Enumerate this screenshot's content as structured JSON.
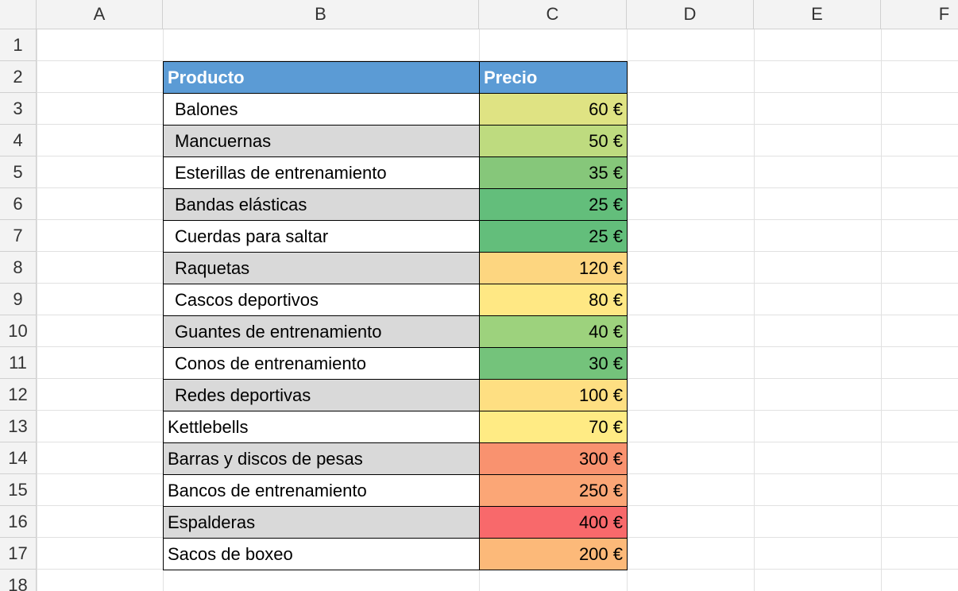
{
  "columns": [
    "A",
    "B",
    "C",
    "D",
    "E",
    "F"
  ],
  "rows": [
    "1",
    "2",
    "3",
    "4",
    "5",
    "6",
    "7",
    "8",
    "9",
    "10",
    "11",
    "12",
    "13",
    "14",
    "15",
    "16",
    "17",
    "18"
  ],
  "table": {
    "header": {
      "product": "Producto",
      "price": "Precio",
      "color": "#5b9bd5"
    },
    "rows": [
      {
        "product": "Balones",
        "price": "60 €",
        "color": "#dfe383",
        "indent": true
      },
      {
        "product": "Mancuernas",
        "price": "50 €",
        "color": "#bedb7f",
        "indent": true
      },
      {
        "product": "Esterillas de entrenamiento",
        "price": "35 €",
        "color": "#86c77a",
        "indent": true
      },
      {
        "product": "Bandas elásticas",
        "price": "25 €",
        "color": "#63be7b",
        "indent": true
      },
      {
        "product": "Cuerdas para saltar",
        "price": "25 €",
        "color": "#63be7b",
        "indent": true
      },
      {
        "product": "Raquetas",
        "price": "120 €",
        "color": "#fdd680",
        "indent": true
      },
      {
        "product": "Cascos deportivos",
        "price": "80 €",
        "color": "#ffe884",
        "indent": true
      },
      {
        "product": "Guantes de entrenamiento",
        "price": "40 €",
        "color": "#9dd27d",
        "indent": true
      },
      {
        "product": "Conos de entrenamiento",
        "price": "30 €",
        "color": "#74c37b",
        "indent": true
      },
      {
        "product": "Redes deportivas",
        "price": "100 €",
        "color": "#fedf82",
        "indent": true
      },
      {
        "product": "Kettlebells",
        "price": "70 €",
        "color": "#ffeb84",
        "indent": false
      },
      {
        "product": "Barras y discos de pesas",
        "price": "300 €",
        "color": "#f9926f",
        "indent": false
      },
      {
        "product": "Bancos de entrenamiento",
        "price": "250 €",
        "color": "#fba676",
        "indent": false
      },
      {
        "product": "Espalderas",
        "price": "400 €",
        "color": "#f8696b",
        "indent": false
      },
      {
        "product": "Sacos de boxeo",
        "price": "200 €",
        "color": "#fcb979",
        "indent": false
      }
    ]
  }
}
